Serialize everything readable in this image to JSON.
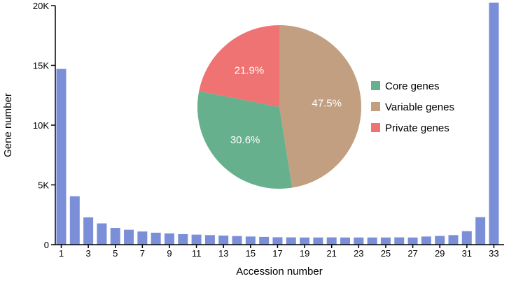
{
  "chart_data": [
    {
      "type": "bar",
      "xlabel": "Accession number",
      "ylabel": "Gene number",
      "x": [
        1,
        2,
        3,
        4,
        5,
        6,
        7,
        8,
        9,
        10,
        11,
        12,
        13,
        14,
        15,
        16,
        17,
        18,
        19,
        20,
        21,
        22,
        23,
        24,
        25,
        26,
        27,
        28,
        29,
        30,
        31,
        32,
        33
      ],
      "values": [
        14700,
        4050,
        2280,
        1780,
        1400,
        1250,
        1100,
        1000,
        940,
        880,
        840,
        800,
        760,
        720,
        680,
        650,
        620,
        610,
        600,
        600,
        610,
        600,
        600,
        600,
        600,
        610,
        600,
        680,
        730,
        800,
        1130,
        2300,
        20250
      ],
      "x_tick_labels": [
        "1",
        "3",
        "5",
        "7",
        "9",
        "11",
        "13",
        "15",
        "17",
        "19",
        "21",
        "23",
        "25",
        "27",
        "29",
        "31",
        "33"
      ],
      "y_ticks": [
        0,
        5000,
        10000,
        15000,
        20000
      ],
      "y_tick_labels": [
        "0",
        "5K",
        "10K",
        "15K",
        "20K"
      ],
      "ylim": [
        0,
        20000
      ],
      "bar_color": "#7b8fd8"
    },
    {
      "type": "pie",
      "slices": [
        {
          "name": "Core genes",
          "value": 30.6,
          "label": "30.6%",
          "color": "#66b08d"
        },
        {
          "name": "Variable genes",
          "value": 47.5,
          "label": "47.5%",
          "color": "#c29f80"
        },
        {
          "name": "Private genes",
          "value": 21.9,
          "label": "21.9%",
          "color": "#ee7372"
        }
      ],
      "legend_placement": "right"
    }
  ]
}
